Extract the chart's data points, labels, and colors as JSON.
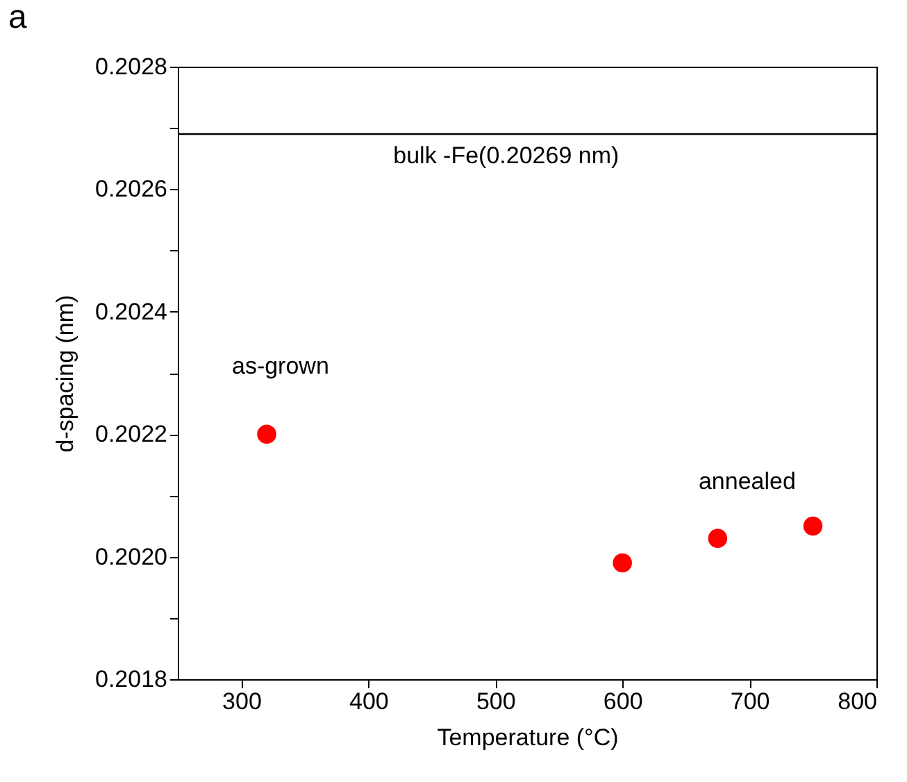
{
  "chart_data": {
    "type": "scatter",
    "title": "a",
    "xlabel": "Temperature (°C)",
    "ylabel": "d-spacing (nm)",
    "x": [
      320,
      600,
      675,
      750
    ],
    "series": [
      {
        "color": "#ff0000",
        "values": [
          0.2022,
          0.20199,
          0.20203,
          0.20205
        ]
      }
    ],
    "xlim": [
      250,
      800
    ],
    "xticks": [
      300,
      400,
      500,
      600,
      700,
      800
    ],
    "ylim": [
      0.2018,
      0.2028
    ],
    "yticks": [
      {
        "value": 0.2018,
        "label": "0.2018"
      },
      {
        "value": 0.2019,
        "label": null
      },
      {
        "value": 0.202,
        "label": "0.2020"
      },
      {
        "value": 0.2021,
        "label": null
      },
      {
        "value": 0.2022,
        "label": "0.2022"
      },
      {
        "value": 0.2023,
        "label": null
      },
      {
        "value": 0.2024,
        "label": "0.2024"
      },
      {
        "value": 0.2025,
        "label": null
      },
      {
        "value": 0.2026,
        "label": "0.2026"
      },
      {
        "value": 0.2027,
        "label": null
      },
      {
        "value": 0.2028,
        "label": "0.2028"
      }
    ],
    "ref_lines": [
      {
        "axis": "y",
        "value": 0.20269,
        "label": "bulk -Fe(0.20269 nm)",
        "color": "#000000"
      }
    ],
    "annotations": [
      "as-grown",
      "annealed"
    ],
    "grid": false,
    "marker": "circle"
  }
}
